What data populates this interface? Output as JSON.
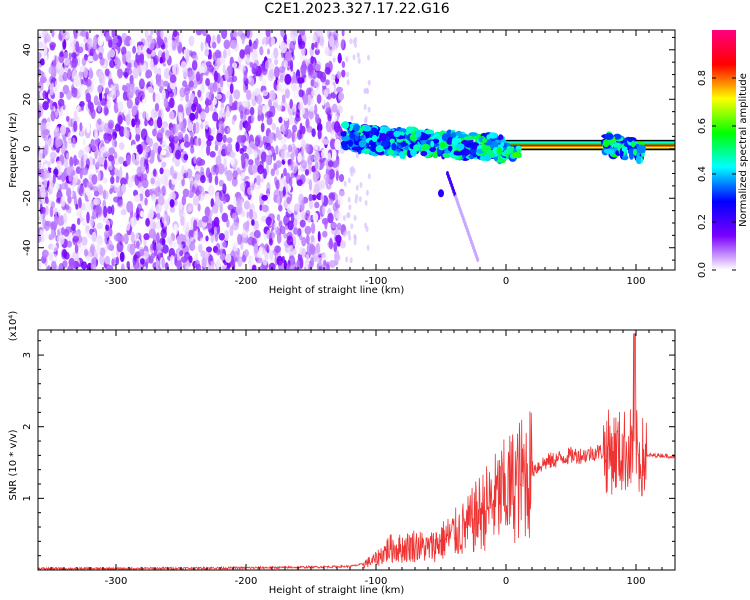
{
  "title": "C2E1.2023.327.17.22.G16",
  "chart_data": [
    {
      "type": "heatmap",
      "xlabel": "Height of straight line (km)",
      "ylabel": "Frequency (Hz)",
      "xlim": [
        -360,
        130
      ],
      "ylim": [
        -49,
        48
      ],
      "xticks": [
        -300,
        -200,
        -100,
        0,
        100
      ],
      "yticks": [
        -40,
        -20,
        0,
        20,
        40
      ],
      "colorbar": {
        "label": "Normalized spectral amplitude",
        "range": [
          0.0,
          1.0
        ],
        "ticks": [
          0.0,
          0.2,
          0.4,
          0.6,
          0.8
        ],
        "colors": [
          "#ffffff",
          "#7a00ff",
          "#0000ff",
          "#00ffff",
          "#00ff00",
          "#ffff00",
          "#ff0000",
          "#ff0080"
        ]
      },
      "regions": [
        {
          "x_range": [
            -360,
            -125
          ],
          "freq_range": [
            -49,
            48
          ],
          "amplitude": 0.1
        },
        {
          "x_range": [
            -125,
            -75
          ],
          "freq_range": [
            -6,
            12
          ],
          "amplitude": 0.3
        },
        {
          "x_range": [
            -75,
            0
          ],
          "freq_range": [
            -4,
            8
          ],
          "amplitude": 0.4
        },
        {
          "x_range": [
            0,
            130
          ],
          "freq_range": [
            -1,
            4
          ],
          "amplitude": 0.8
        }
      ],
      "grid": false
    },
    {
      "type": "line",
      "xlabel": "Height of straight line (km)",
      "ylabel": "SNR (10 * v/v)",
      "multiplier": "(x10⁴)",
      "xlim": [
        -360,
        130
      ],
      "ylim": [
        0,
        3.35
      ],
      "xticks": [
        -300,
        -200,
        -100,
        0,
        100
      ],
      "yticks": [
        1,
        2,
        3
      ],
      "color": "#ee3333",
      "series": [
        {
          "x": [
            -360,
            -300,
            -200,
            -150,
            -120,
            -110,
            -100,
            -90,
            -80,
            -70,
            -60,
            -50,
            -40,
            -30,
            -20,
            -10,
            0,
            10,
            20,
            30,
            40,
            50,
            60,
            70,
            80,
            90,
            95,
            100,
            105,
            110,
            120,
            130
          ],
          "y": [
            0.02,
            0.02,
            0.03,
            0.04,
            0.05,
            0.08,
            0.15,
            0.3,
            0.3,
            0.35,
            0.3,
            0.4,
            0.5,
            0.6,
            0.8,
            0.95,
            1.1,
            1.25,
            1.4,
            1.5,
            1.55,
            1.6,
            1.6,
            1.65,
            1.65,
            1.65,
            1.7,
            1.65,
            1.55,
            1.6,
            1.6,
            1.58
          ]
        }
      ],
      "grid": false
    }
  ]
}
